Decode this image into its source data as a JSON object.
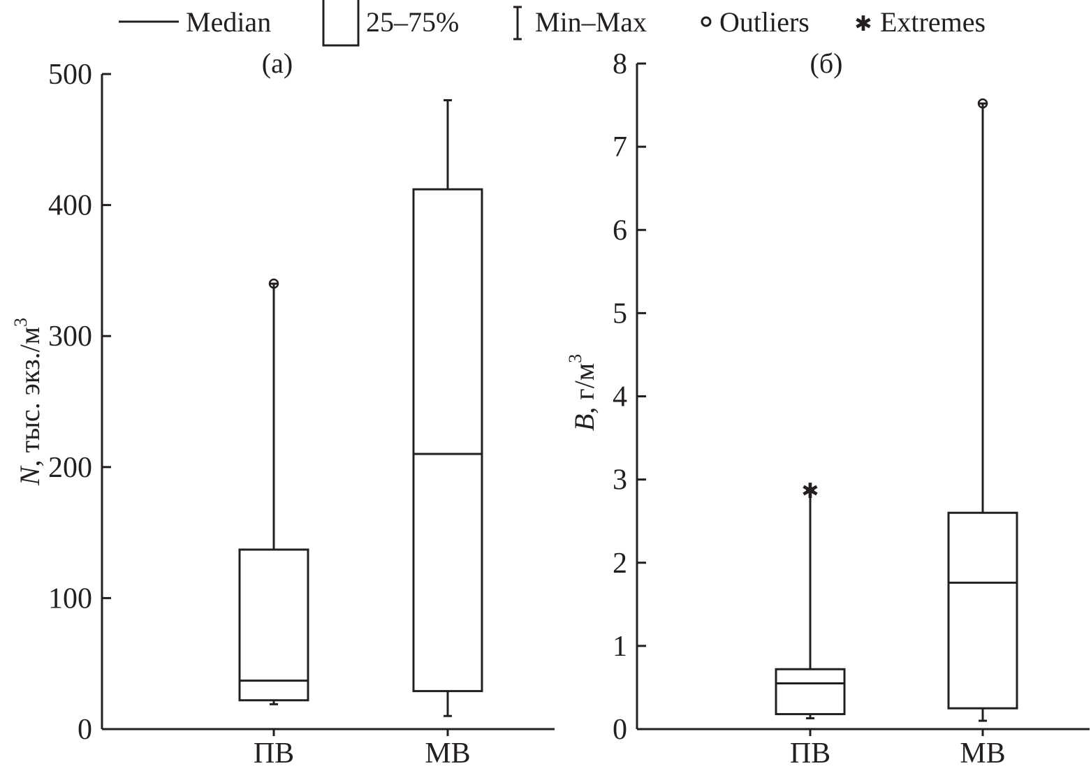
{
  "legend": {
    "median": "Median",
    "box": "25–75%",
    "range": "Min–Max",
    "outliers": "Outliers",
    "extremes": "Extremes"
  },
  "chart_data": [
    {
      "type": "boxplot",
      "panel_label": "(a)",
      "ylabel_var": "N",
      "ylabel_unit": ", тыс. экз./м",
      "ylabel_sup": "3",
      "ylim": [
        0,
        500
      ],
      "yticks": [
        "0",
        "100",
        "200",
        "300",
        "400",
        "500"
      ],
      "categories": [
        "ПВ",
        "МВ"
      ],
      "boxes": [
        {
          "name": "ПВ",
          "min": 19,
          "q1": 22,
          "median": 37,
          "q3": 137,
          "max": 340,
          "outliers": [
            340
          ],
          "extremes": []
        },
        {
          "name": "МВ",
          "min": 10,
          "q1": 29,
          "median": 210,
          "q3": 412,
          "max": 480,
          "outliers": [],
          "extremes": []
        }
      ]
    },
    {
      "type": "boxplot",
      "panel_label": "(б)",
      "ylabel_var": "B",
      "ylabel_unit": ", г/м",
      "ylabel_sup": "3",
      "ylim": [
        0,
        8
      ],
      "yticks": [
        "0",
        "1",
        "2",
        "3",
        "4",
        "5",
        "6",
        "7",
        "8"
      ],
      "categories": [
        "ПВ",
        "МВ"
      ],
      "boxes": [
        {
          "name": "ПВ",
          "min": 0.13,
          "q1": 0.18,
          "median": 0.55,
          "q3": 0.72,
          "max": 2.87,
          "outliers": [],
          "extremes": [
            2.87
          ]
        },
        {
          "name": "МВ",
          "min": 0.1,
          "q1": 0.25,
          "median": 1.76,
          "q3": 2.6,
          "max": 7.52,
          "outliers": [
            7.52
          ],
          "extremes": []
        }
      ]
    }
  ]
}
